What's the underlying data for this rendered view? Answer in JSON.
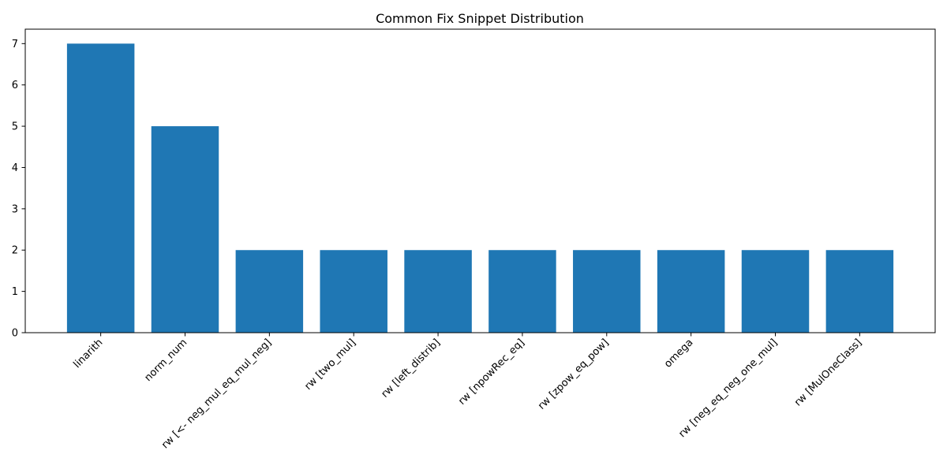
{
  "chart_data": {
    "type": "bar",
    "title": "Common Fix Snippet Distribution",
    "xlabel": "",
    "ylabel": "",
    "categories": [
      "linarith",
      "norm_num",
      "rw [<- neg_mul_eq_mul_neg]",
      "rw [two_mul]",
      "rw [left_distrib]",
      "rw [npowRec_eq]",
      "rw [zpow_eq_pow]",
      "omega",
      "rw [neg_eq_neg_one_mul]",
      "rw [MulOneClass]"
    ],
    "values": [
      7,
      5,
      2,
      2,
      2,
      2,
      2,
      2,
      2,
      2
    ],
    "ylim": [
      0,
      7.35
    ],
    "yticks": [
      0,
      1,
      2,
      3,
      4,
      5,
      6,
      7
    ],
    "grid": false,
    "legend": "none",
    "bar_color": "#1f77b4"
  }
}
